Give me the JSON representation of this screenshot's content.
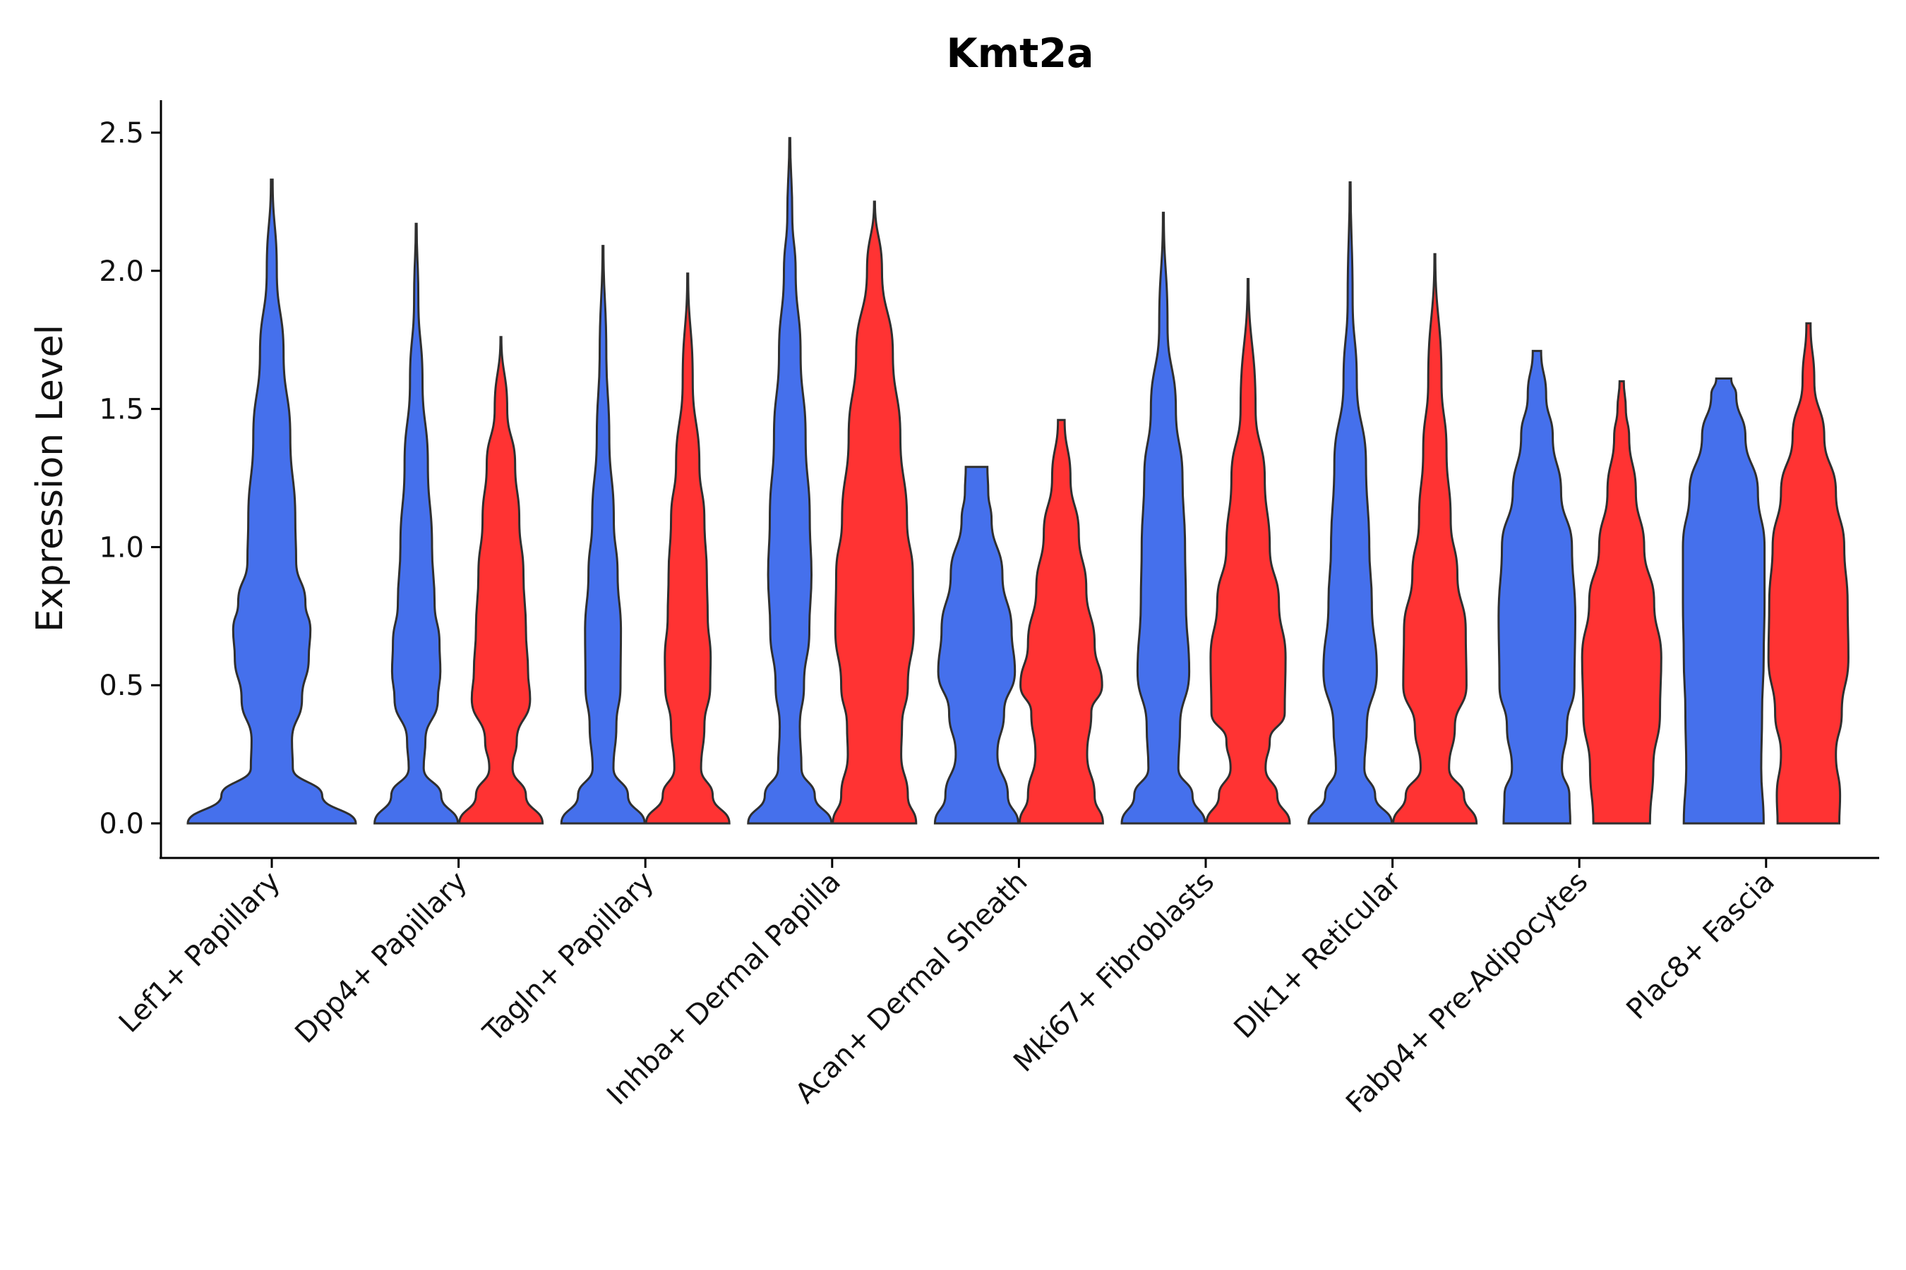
{
  "chart_data": {
    "type": "violin",
    "title": "Kmt2a",
    "xlabel": "",
    "ylabel": "Expression Level",
    "ylim": [
      -0.13,
      2.62
    ],
    "yticks": [
      "0.0",
      "0.5",
      "1.0",
      "1.5",
      "2.0",
      "2.5"
    ],
    "grid": false,
    "legend": "none",
    "colors": {
      "group1": "#4570EC",
      "group2": "#FF3333"
    },
    "categories": [
      "Lef1+ Papillary",
      "Dpp4+ Papillary",
      "Tagln+ Papillary",
      "Inhba+ Dermal Papilla",
      "Acan+ Dermal Sheath",
      "Mki67+ Fibroblasts",
      "Dlk1+ Reticular",
      "Fabp4+ Pre-Adipocytes",
      "Plac8+ Fascia"
    ],
    "violins": [
      {
        "category": "Lef1+ Papillary",
        "group": "group1",
        "ymax": 2.33,
        "profile": [
          [
            0,
            1.0
          ],
          [
            0.1,
            0.6
          ],
          [
            0.2,
            0.25
          ],
          [
            0.3,
            0.24
          ],
          [
            0.45,
            0.36
          ],
          [
            0.6,
            0.44
          ],
          [
            0.7,
            0.46
          ],
          [
            0.8,
            0.4
          ],
          [
            0.95,
            0.29
          ],
          [
            1.1,
            0.28
          ],
          [
            1.4,
            0.22
          ],
          [
            1.7,
            0.14
          ],
          [
            2.0,
            0.06
          ],
          [
            2.33,
            0.01
          ]
        ]
      },
      {
        "category": "Dpp4+ Papillary",
        "group": "group1",
        "ymax": 2.17,
        "profile": [
          [
            0,
            1.0
          ],
          [
            0.1,
            0.6
          ],
          [
            0.2,
            0.18
          ],
          [
            0.3,
            0.22
          ],
          [
            0.45,
            0.52
          ],
          [
            0.55,
            0.58
          ],
          [
            0.65,
            0.56
          ],
          [
            0.8,
            0.44
          ],
          [
            1.0,
            0.38
          ],
          [
            1.3,
            0.28
          ],
          [
            1.6,
            0.15
          ],
          [
            1.9,
            0.05
          ],
          [
            2.17,
            0.01
          ]
        ]
      },
      {
        "category": "Dpp4+ Papillary",
        "group": "group2",
        "ymax": 1.76,
        "profile": [
          [
            0,
            1.0
          ],
          [
            0.1,
            0.6
          ],
          [
            0.2,
            0.28
          ],
          [
            0.3,
            0.38
          ],
          [
            0.45,
            0.7
          ],
          [
            0.55,
            0.65
          ],
          [
            0.7,
            0.6
          ],
          [
            0.9,
            0.54
          ],
          [
            1.1,
            0.44
          ],
          [
            1.3,
            0.34
          ],
          [
            1.5,
            0.15
          ],
          [
            1.76,
            0.01
          ]
        ]
      },
      {
        "category": "Tagln+ Papillary",
        "group": "group1",
        "ymax": 2.09,
        "profile": [
          [
            0,
            1.0
          ],
          [
            0.1,
            0.6
          ],
          [
            0.2,
            0.25
          ],
          [
            0.35,
            0.32
          ],
          [
            0.5,
            0.42
          ],
          [
            0.7,
            0.43
          ],
          [
            0.9,
            0.35
          ],
          [
            1.1,
            0.26
          ],
          [
            1.4,
            0.15
          ],
          [
            1.7,
            0.08
          ],
          [
            2.09,
            0.01
          ]
        ]
      },
      {
        "category": "Tagln+ Papillary",
        "group": "group2",
        "ymax": 1.99,
        "profile": [
          [
            0,
            1.0
          ],
          [
            0.1,
            0.6
          ],
          [
            0.2,
            0.32
          ],
          [
            0.35,
            0.4
          ],
          [
            0.5,
            0.54
          ],
          [
            0.6,
            0.55
          ],
          [
            0.75,
            0.48
          ],
          [
            0.9,
            0.46
          ],
          [
            1.1,
            0.4
          ],
          [
            1.3,
            0.28
          ],
          [
            1.6,
            0.12
          ],
          [
            1.99,
            0.01
          ]
        ]
      },
      {
        "category": "Inhba+ Dermal Papilla",
        "group": "group1",
        "ymax": 2.48,
        "profile": [
          [
            0,
            1.0
          ],
          [
            0.1,
            0.6
          ],
          [
            0.2,
            0.28
          ],
          [
            0.35,
            0.24
          ],
          [
            0.5,
            0.34
          ],
          [
            0.7,
            0.47
          ],
          [
            0.9,
            0.52
          ],
          [
            1.1,
            0.48
          ],
          [
            1.4,
            0.38
          ],
          [
            1.7,
            0.26
          ],
          [
            2.0,
            0.14
          ],
          [
            2.2,
            0.06
          ],
          [
            2.48,
            0.01
          ]
        ]
      },
      {
        "category": "Inhba+ Dermal Papilla",
        "group": "group2",
        "ymax": 2.25,
        "profile": [
          [
            0,
            1.0
          ],
          [
            0.1,
            0.8
          ],
          [
            0.25,
            0.64
          ],
          [
            0.35,
            0.66
          ],
          [
            0.5,
            0.8
          ],
          [
            0.7,
            0.94
          ],
          [
            0.9,
            0.92
          ],
          [
            1.1,
            0.78
          ],
          [
            1.4,
            0.62
          ],
          [
            1.7,
            0.44
          ],
          [
            2.0,
            0.18
          ],
          [
            2.25,
            0.01
          ]
        ]
      },
      {
        "category": "Acan+ Dermal Sheath",
        "group": "group1",
        "ymax": 1.29,
        "profile": [
          [
            0,
            1.0
          ],
          [
            0.1,
            0.75
          ],
          [
            0.25,
            0.5
          ],
          [
            0.4,
            0.66
          ],
          [
            0.55,
            0.92
          ],
          [
            0.7,
            0.84
          ],
          [
            0.9,
            0.62
          ],
          [
            1.1,
            0.36
          ],
          [
            1.2,
            0.28
          ],
          [
            1.29,
            0.26
          ]
        ]
      },
      {
        "category": "Acan+ Dermal Sheath",
        "group": "group2",
        "ymax": 1.46,
        "profile": [
          [
            0,
            1.0
          ],
          [
            0.1,
            0.8
          ],
          [
            0.25,
            0.62
          ],
          [
            0.4,
            0.72
          ],
          [
            0.5,
            0.98
          ],
          [
            0.65,
            0.8
          ],
          [
            0.85,
            0.6
          ],
          [
            1.05,
            0.42
          ],
          [
            1.25,
            0.22
          ],
          [
            1.46,
            0.08
          ]
        ]
      },
      {
        "category": "Mki67+ Fibroblasts",
        "group": "group1",
        "ymax": 2.21,
        "profile": [
          [
            0,
            1.0
          ],
          [
            0.1,
            0.7
          ],
          [
            0.2,
            0.36
          ],
          [
            0.35,
            0.4
          ],
          [
            0.55,
            0.62
          ],
          [
            0.8,
            0.54
          ],
          [
            1.0,
            0.52
          ],
          [
            1.25,
            0.46
          ],
          [
            1.5,
            0.3
          ],
          [
            1.8,
            0.1
          ],
          [
            2.21,
            0.01
          ]
        ]
      },
      {
        "category": "Mki67+ Fibroblasts",
        "group": "group2",
        "ymax": 1.97,
        "profile": [
          [
            0,
            1.0
          ],
          [
            0.1,
            0.7
          ],
          [
            0.2,
            0.42
          ],
          [
            0.3,
            0.52
          ],
          [
            0.4,
            0.88
          ],
          [
            0.6,
            0.9
          ],
          [
            0.8,
            0.74
          ],
          [
            1.0,
            0.52
          ],
          [
            1.25,
            0.4
          ],
          [
            1.5,
            0.18
          ],
          [
            1.97,
            0.01
          ]
        ]
      },
      {
        "category": "Dlk1+ Reticular",
        "group": "group1",
        "ymax": 2.32,
        "profile": [
          [
            0,
            1.0
          ],
          [
            0.1,
            0.6
          ],
          [
            0.2,
            0.34
          ],
          [
            0.35,
            0.4
          ],
          [
            0.55,
            0.64
          ],
          [
            0.8,
            0.52
          ],
          [
            1.0,
            0.46
          ],
          [
            1.3,
            0.38
          ],
          [
            1.6,
            0.16
          ],
          [
            1.9,
            0.06
          ],
          [
            2.32,
            0.01
          ]
        ]
      },
      {
        "category": "Dlk1+ Reticular",
        "group": "group2",
        "ymax": 2.06,
        "profile": [
          [
            0,
            1.0
          ],
          [
            0.1,
            0.7
          ],
          [
            0.2,
            0.34
          ],
          [
            0.35,
            0.48
          ],
          [
            0.5,
            0.76
          ],
          [
            0.7,
            0.74
          ],
          [
            0.9,
            0.54
          ],
          [
            1.1,
            0.38
          ],
          [
            1.35,
            0.28
          ],
          [
            1.6,
            0.16
          ],
          [
            2.06,
            0.01
          ]
        ]
      },
      {
        "category": "Fabp4+ Pre-Adipocytes",
        "group": "group1",
        "ymax": 1.71,
        "profile": [
          [
            0,
            0.8
          ],
          [
            0.1,
            0.78
          ],
          [
            0.2,
            0.6
          ],
          [
            0.35,
            0.72
          ],
          [
            0.5,
            0.9
          ],
          [
            0.75,
            0.92
          ],
          [
            1.0,
            0.84
          ],
          [
            1.2,
            0.58
          ],
          [
            1.4,
            0.38
          ],
          [
            1.55,
            0.22
          ],
          [
            1.71,
            0.1
          ]
        ]
      },
      {
        "category": "Fabp4+ Pre-Adipocytes",
        "group": "group2",
        "ymax": 1.6,
        "profile": [
          [
            0,
            0.68
          ],
          [
            0.2,
            0.76
          ],
          [
            0.4,
            0.92
          ],
          [
            0.6,
            0.95
          ],
          [
            0.8,
            0.78
          ],
          [
            1.0,
            0.54
          ],
          [
            1.2,
            0.34
          ],
          [
            1.4,
            0.18
          ],
          [
            1.5,
            0.1
          ],
          [
            1.6,
            0.05
          ]
        ]
      },
      {
        "category": "Plac8+ Fascia",
        "group": "group1",
        "ymax": 1.61,
        "profile": [
          [
            0,
            0.96
          ],
          [
            0.2,
            0.9
          ],
          [
            0.4,
            0.92
          ],
          [
            0.6,
            0.96
          ],
          [
            0.8,
            0.98
          ],
          [
            1.0,
            0.98
          ],
          [
            1.2,
            0.82
          ],
          [
            1.4,
            0.52
          ],
          [
            1.55,
            0.3
          ],
          [
            1.61,
            0.18
          ]
        ]
      },
      {
        "category": "Plac8+ Fascia",
        "group": "group2",
        "ymax": 1.81,
        "profile": [
          [
            0,
            0.74
          ],
          [
            0.1,
            0.76
          ],
          [
            0.25,
            0.66
          ],
          [
            0.4,
            0.8
          ],
          [
            0.6,
            0.96
          ],
          [
            0.8,
            0.94
          ],
          [
            1.0,
            0.86
          ],
          [
            1.2,
            0.66
          ],
          [
            1.4,
            0.38
          ],
          [
            1.6,
            0.14
          ],
          [
            1.81,
            0.05
          ]
        ]
      }
    ]
  }
}
